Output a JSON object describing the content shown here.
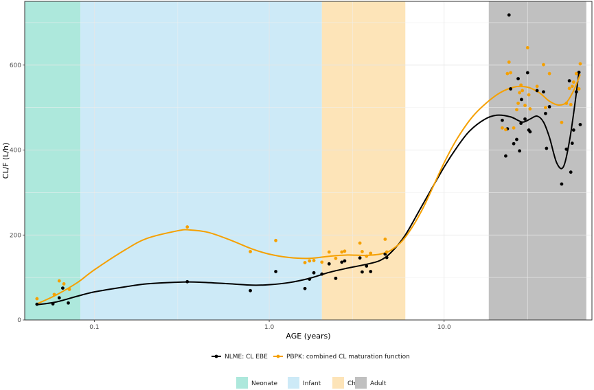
{
  "chart_data": {
    "type": "scatter",
    "xlabel": "AGE (years)",
    "ylabel": "CL/F (L/h)",
    "x_scale": "log10",
    "xlim": [
      0.04,
      70
    ],
    "ylim": [
      0,
      750
    ],
    "x_ticks": [
      0.1,
      1.0,
      10.0
    ],
    "x_tick_labels": [
      "0.1",
      "1.0",
      "10.0"
    ],
    "y_ticks": [
      0,
      200,
      400,
      600
    ],
    "y_tick_labels": [
      "0",
      "200",
      "400",
      "600"
    ],
    "grid": true,
    "age_bands": [
      {
        "name": "Neonate",
        "from": 0.04,
        "to": 0.0833,
        "color": "#ade8dc"
      },
      {
        "name": "Infant",
        "from": 0.0833,
        "to": 2.0,
        "color": "#cdeaf7"
      },
      {
        "name": "Child",
        "from": 2.0,
        "to": 6.0,
        "color": "#fde4b8"
      },
      {
        "name": "Adult",
        "from": 18.0,
        "to": 65.0,
        "color": "#c0c0c0"
      }
    ],
    "series": [
      {
        "name": "NLME: CL EBE",
        "color": "#000000",
        "points": [
          [
            0.047,
            37
          ],
          [
            0.058,
            38
          ],
          [
            0.063,
            52
          ],
          [
            0.066,
            75
          ],
          [
            0.071,
            40
          ],
          [
            0.34,
            90
          ],
          [
            0.78,
            69
          ],
          [
            1.09,
            114
          ],
          [
            1.6,
            74
          ],
          [
            1.7,
            96
          ],
          [
            1.8,
            111
          ],
          [
            2.0,
            108
          ],
          [
            2.2,
            132
          ],
          [
            2.4,
            98
          ],
          [
            2.6,
            136
          ],
          [
            2.7,
            139
          ],
          [
            3.3,
            146
          ],
          [
            3.4,
            113
          ],
          [
            3.6,
            127
          ],
          [
            3.8,
            114
          ],
          [
            4.6,
            155
          ],
          [
            4.7,
            147
          ],
          [
            21.5,
            470
          ],
          [
            22.5,
            386
          ],
          [
            23.0,
            450
          ],
          [
            23.5,
            718
          ],
          [
            24.0,
            544
          ],
          [
            25.0,
            415
          ],
          [
            26.0,
            425
          ],
          [
            26.5,
            568
          ],
          [
            27.0,
            398
          ],
          [
            27.5,
            463
          ],
          [
            27.7,
            519
          ],
          [
            29.0,
            473
          ],
          [
            30.0,
            582
          ],
          [
            30.5,
            447
          ],
          [
            31.0,
            443
          ],
          [
            34.0,
            540
          ],
          [
            37.0,
            537
          ],
          [
            38.0,
            486
          ],
          [
            38.5,
            404
          ],
          [
            40.0,
            502
          ],
          [
            47.0,
            320
          ],
          [
            50.0,
            402
          ],
          [
            52.0,
            563
          ],
          [
            53.0,
            348
          ],
          [
            54.0,
            416
          ],
          [
            55.0,
            447
          ],
          [
            57.0,
            537
          ],
          [
            59.0,
            583
          ],
          [
            60.0,
            460
          ]
        ],
        "smooth": [
          [
            0.047,
            36
          ],
          [
            0.06,
            42
          ],
          [
            0.08,
            56
          ],
          [
            0.1,
            66
          ],
          [
            0.15,
            78
          ],
          [
            0.2,
            85
          ],
          [
            0.3,
            89
          ],
          [
            0.4,
            89
          ],
          [
            0.6,
            85
          ],
          [
            0.8,
            82
          ],
          [
            1.0,
            83
          ],
          [
            1.3,
            88
          ],
          [
            1.7,
            98
          ],
          [
            2.2,
            112
          ],
          [
            2.8,
            122
          ],
          [
            3.5,
            130
          ],
          [
            4.3,
            140
          ],
          [
            5.0,
            160
          ],
          [
            6.0,
            200
          ],
          [
            7.5,
            270
          ],
          [
            10.0,
            360
          ],
          [
            12.0,
            410
          ],
          [
            14.0,
            445
          ],
          [
            17.0,
            472
          ],
          [
            20.0,
            482
          ],
          [
            24.0,
            478
          ],
          [
            28.0,
            466
          ],
          [
            31.0,
            473
          ],
          [
            34.0,
            480
          ],
          [
            37.0,
            466
          ],
          [
            40.0,
            430
          ],
          [
            44.0,
            370
          ],
          [
            48.0,
            360
          ],
          [
            52.0,
            420
          ],
          [
            56.0,
            510
          ],
          [
            59.0,
            585
          ]
        ]
      },
      {
        "name": "PBPK: combined CL maturation function",
        "color": "#f5a000",
        "points": [
          [
            0.047,
            50
          ],
          [
            0.059,
            60
          ],
          [
            0.063,
            92
          ],
          [
            0.067,
            85
          ],
          [
            0.072,
            72
          ],
          [
            0.34,
            219
          ],
          [
            0.78,
            161
          ],
          [
            1.09,
            187
          ],
          [
            1.6,
            135
          ],
          [
            1.7,
            139
          ],
          [
            1.8,
            140
          ],
          [
            2.0,
            136
          ],
          [
            2.2,
            160
          ],
          [
            2.4,
            145
          ],
          [
            2.6,
            160
          ],
          [
            2.7,
            162
          ],
          [
            3.3,
            181
          ],
          [
            3.4,
            161
          ],
          [
            3.6,
            150
          ],
          [
            3.8,
            157
          ],
          [
            4.6,
            190
          ],
          [
            4.7,
            160
          ],
          [
            21.5,
            452
          ],
          [
            22.5,
            448
          ],
          [
            23.0,
            580
          ],
          [
            23.5,
            607
          ],
          [
            24.0,
            582
          ],
          [
            25.0,
            452
          ],
          [
            26.0,
            495
          ],
          [
            26.5,
            510
          ],
          [
            27.0,
            535
          ],
          [
            27.5,
            553
          ],
          [
            28.0,
            540
          ],
          [
            29.0,
            505
          ],
          [
            30.0,
            641
          ],
          [
            30.5,
            530
          ],
          [
            31.0,
            497
          ],
          [
            34.0,
            550
          ],
          [
            37.0,
            601
          ],
          [
            38.0,
            500
          ],
          [
            40.0,
            580
          ],
          [
            47.0,
            465
          ],
          [
            50.0,
            510
          ],
          [
            52.0,
            545
          ],
          [
            53.0,
            507
          ],
          [
            54.0,
            550
          ],
          [
            55.0,
            560
          ],
          [
            57.0,
            580
          ],
          [
            59.0,
            544
          ],
          [
            60.0,
            603
          ]
        ],
        "smooth": [
          [
            0.047,
            38
          ],
          [
            0.06,
            58
          ],
          [
            0.08,
            88
          ],
          [
            0.1,
            118
          ],
          [
            0.15,
            165
          ],
          [
            0.2,
            192
          ],
          [
            0.3,
            210
          ],
          [
            0.35,
            212
          ],
          [
            0.45,
            206
          ],
          [
            0.6,
            188
          ],
          [
            0.8,
            167
          ],
          [
            1.0,
            155
          ],
          [
            1.3,
            147
          ],
          [
            1.7,
            145
          ],
          [
            2.2,
            150
          ],
          [
            2.8,
            153
          ],
          [
            3.5,
            152
          ],
          [
            4.3,
            155
          ],
          [
            5.0,
            165
          ],
          [
            6.0,
            195
          ],
          [
            7.5,
            260
          ],
          [
            10.0,
            370
          ],
          [
            12.0,
            430
          ],
          [
            15.0,
            485
          ],
          [
            20.0,
            530
          ],
          [
            25.0,
            548
          ],
          [
            30.0,
            548
          ],
          [
            35.0,
            535
          ],
          [
            40.0,
            515
          ],
          [
            45.0,
            506
          ],
          [
            50.0,
            512
          ],
          [
            55.0,
            540
          ],
          [
            60.0,
            578
          ]
        ]
      }
    ]
  },
  "legend": {
    "series": [
      {
        "label": "NLME: CL EBE",
        "color": "#000000"
      },
      {
        "label": "PBPK: combined CL maturation function",
        "color": "#f5a000"
      }
    ],
    "bands": [
      {
        "label": "Neonate",
        "color": "#ade8dc"
      },
      {
        "label": "Infant",
        "color": "#cdeaf7"
      },
      {
        "label": "Child",
        "color": "#fde4b8"
      },
      {
        "label": "Adult",
        "color": "#c0c0c0"
      }
    ]
  }
}
